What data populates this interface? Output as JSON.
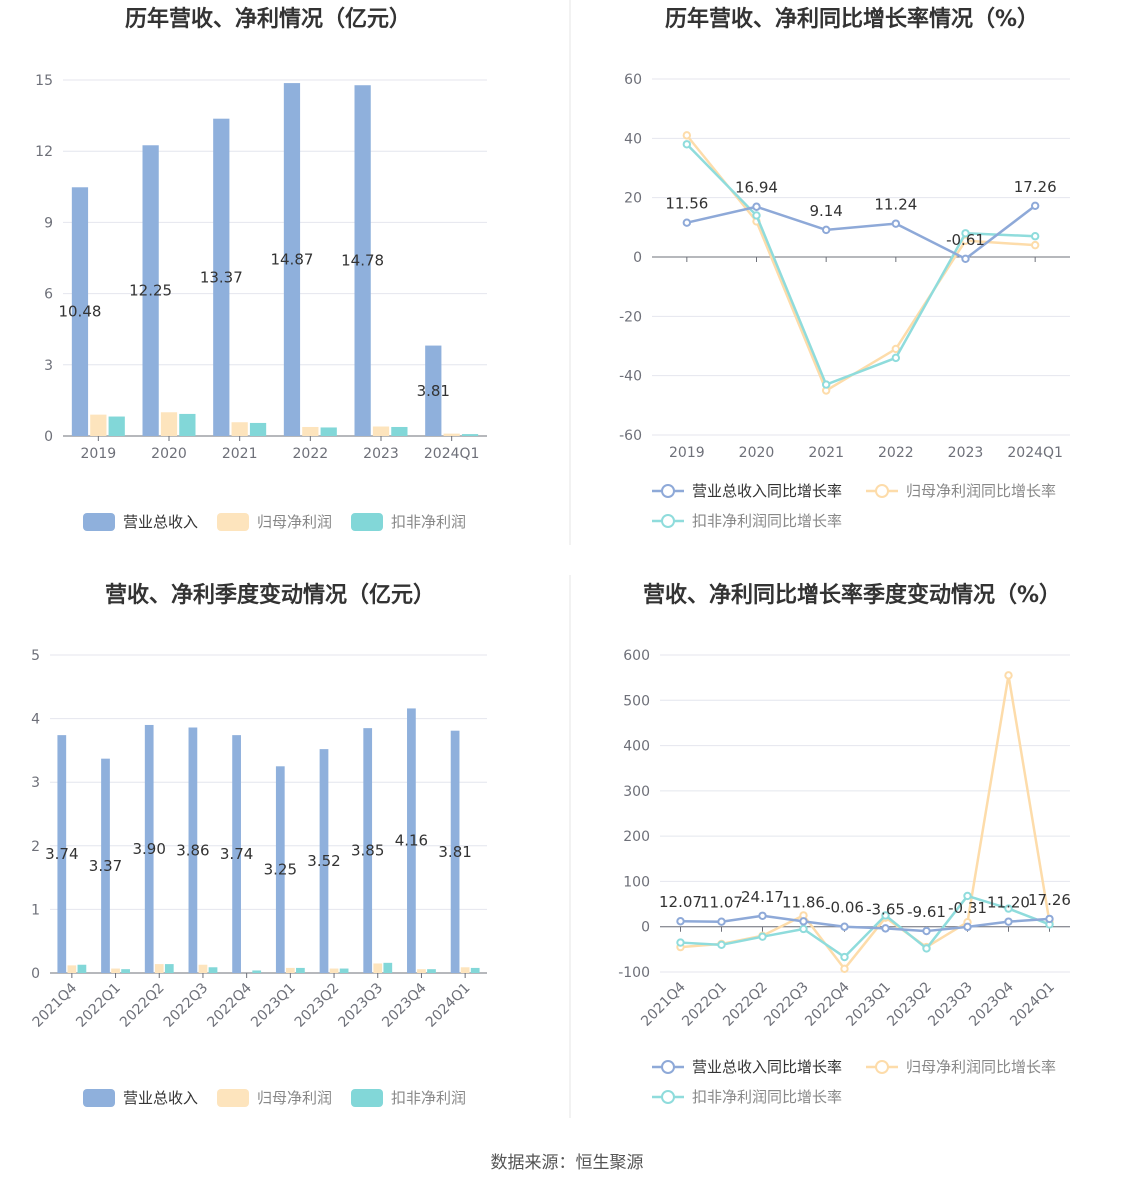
{
  "source_label": "数据来源：恒生聚源",
  "colors": {
    "revenue": "#8fb0dc",
    "net_profit": "#fde4bd",
    "deducted": "#82d7d8",
    "grid": "#e4e6ee",
    "axis": "#6e7079",
    "line_revenue": "#8ea9d8",
    "line_net": "#fddcaa",
    "line_deducted": "#8fdcdc"
  },
  "chart_data": [
    {
      "type": "bar",
      "title": "历年营收、净利情况（亿元）",
      "categories": [
        "2019",
        "2020",
        "2021",
        "2022",
        "2023",
        "2024Q1"
      ],
      "series": [
        {
          "name": "营业总收入",
          "values": [
            10.48,
            12.25,
            13.37,
            14.87,
            14.78,
            3.81
          ],
          "labels": [
            "10.48",
            "12.25",
            "13.37",
            "14.87",
            "14.78",
            "3.81"
          ]
        },
        {
          "name": "归母净利润",
          "values": [
            0.9,
            1.0,
            0.58,
            0.38,
            0.4,
            0.1
          ]
        },
        {
          "name": "扣非净利润",
          "values": [
            0.82,
            0.93,
            0.55,
            0.36,
            0.38,
            0.08
          ]
        }
      ],
      "ylim": [
        0,
        15
      ],
      "yticks": [
        "0",
        "3",
        "6",
        "9",
        "12",
        "15"
      ],
      "grid": true,
      "legend": "bottom"
    },
    {
      "type": "line",
      "title": "历年营收、净利同比增长率情况（%）",
      "categories": [
        "2019",
        "2020",
        "2021",
        "2022",
        "2023",
        "2024Q1"
      ],
      "series": [
        {
          "name": "营业总收入同比增长率",
          "values": [
            11.56,
            16.94,
            9.14,
            11.24,
            -0.61,
            17.26
          ],
          "labels": [
            "11.56",
            "16.94",
            "9.14",
            "11.24",
            "-0.61",
            "17.26"
          ]
        },
        {
          "name": "归母净利润同比增长率",
          "values": [
            41,
            12,
            -45,
            -31,
            5.5,
            4
          ]
        },
        {
          "name": "扣非净利润同比增长率",
          "values": [
            38,
            14,
            -43,
            -34,
            8,
            7
          ]
        }
      ],
      "ylim": [
        -60,
        60
      ],
      "yticks": [
        "-60",
        "-40",
        "-20",
        "0",
        "20",
        "40",
        "60"
      ],
      "grid": true,
      "legend": "bottom"
    },
    {
      "type": "bar",
      "title": "营收、净利季度变动情况（亿元）",
      "categories": [
        "2021Q4",
        "2022Q1",
        "2022Q2",
        "2022Q3",
        "2022Q4",
        "2023Q1",
        "2023Q2",
        "2023Q3",
        "2023Q4",
        "2024Q1"
      ],
      "series": [
        {
          "name": "营业总收入",
          "values": [
            3.74,
            3.37,
            3.9,
            3.86,
            3.74,
            3.25,
            3.52,
            3.85,
            4.16,
            3.81
          ],
          "labels": [
            "3.74",
            "3.37",
            "3.90",
            "3.86",
            "3.74",
            "3.25",
            "3.52",
            "3.85",
            "4.16",
            "3.81"
          ]
        },
        {
          "name": "归母净利润",
          "values": [
            0.12,
            0.07,
            0.14,
            0.13,
            0.0,
            0.08,
            0.07,
            0.15,
            0.06,
            0.09
          ]
        },
        {
          "name": "扣非净利润",
          "values": [
            0.13,
            0.06,
            0.14,
            0.09,
            0.04,
            0.08,
            0.07,
            0.16,
            0.06,
            0.08
          ]
        }
      ],
      "ylim": [
        0,
        5
      ],
      "yticks": [
        "0",
        "1",
        "2",
        "3",
        "4",
        "5"
      ],
      "grid": true,
      "legend": "bottom"
    },
    {
      "type": "line",
      "title": "营收、净利同比增长率季度变动情况（%）",
      "categories": [
        "2021Q4",
        "2022Q1",
        "2022Q2",
        "2022Q3",
        "2022Q4",
        "2023Q1",
        "2023Q2",
        "2023Q3",
        "2023Q4",
        "2024Q1"
      ],
      "series": [
        {
          "name": "营业总收入同比增长率",
          "values": [
            12.07,
            11.07,
            24.17,
            11.86,
            -0.06,
            -3.65,
            -9.61,
            -0.31,
            11.2,
            17.26
          ],
          "labels": [
            "12.07",
            "11.07",
            "24.17",
            "11.86",
            "-0.06",
            "-3.65",
            "-9.61",
            "-0.31",
            "11.20",
            "17.26"
          ]
        },
        {
          "name": "归母净利润同比增长率",
          "values": [
            -45,
            -38,
            -20,
            25,
            -93,
            20,
            -45,
            10,
            555,
            10
          ]
        },
        {
          "name": "扣非净利润同比增长率",
          "values": [
            -35,
            -40,
            -22,
            -5,
            -67,
            25,
            -48,
            68,
            40,
            5
          ]
        }
      ],
      "ylim": [
        -100,
        600
      ],
      "yticks": [
        "-100",
        "0",
        "100",
        "200",
        "300",
        "400",
        "500",
        "600"
      ],
      "grid": true,
      "legend": "bottom"
    }
  ]
}
